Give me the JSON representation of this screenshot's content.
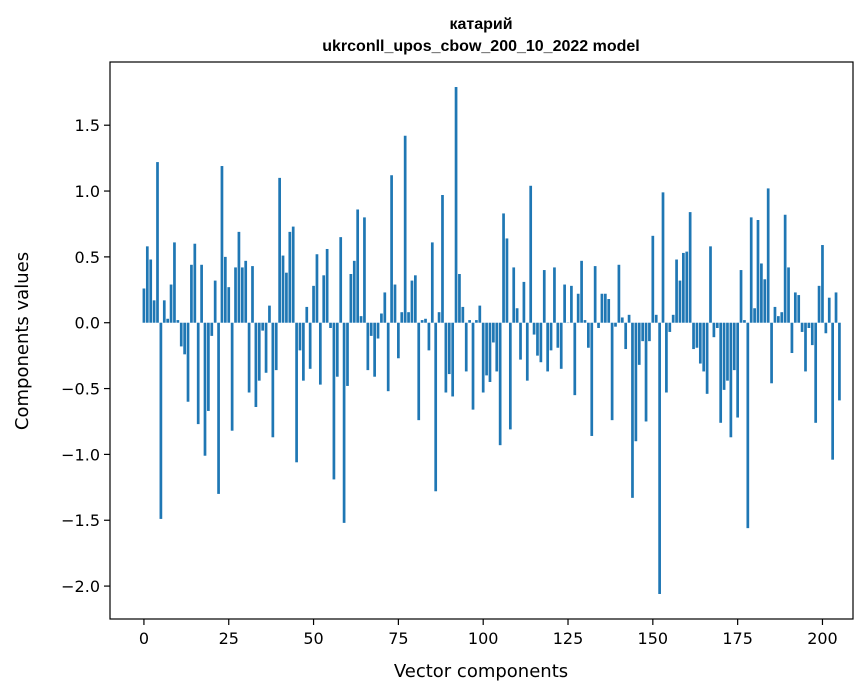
{
  "chart_data": {
    "type": "bar",
    "title": "катарий",
    "subtitle": "ukrconll_upos_cbow_200_10_2022 model",
    "xlabel": "Vector components",
    "ylabel": "Components values",
    "xlim": [
      -10,
      209
    ],
    "ylim": [
      -2.25,
      1.98
    ],
    "xticks": [
      0,
      25,
      50,
      75,
      100,
      125,
      150,
      175,
      200
    ],
    "yticks": [
      -2.0,
      -1.5,
      -1.0,
      -0.5,
      0.0,
      0.5,
      1.0,
      1.5
    ],
    "ytick_labels": [
      "−2.0",
      "−1.5",
      "−1.0",
      "−0.5",
      "0.0",
      "0.5",
      "1.0",
      "1.5"
    ],
    "bar_color": "#1f77b4",
    "grid": false,
    "values": [
      0.26,
      0.58,
      0.48,
      0.17,
      1.22,
      -1.49,
      0.17,
      0.03,
      0.29,
      0.61,
      0.02,
      -0.18,
      -0.24,
      -0.6,
      0.44,
      0.6,
      -0.77,
      0.44,
      -1.01,
      -0.67,
      -0.1,
      0.32,
      -1.3,
      1.19,
      0.5,
      0.27,
      -0.82,
      0.42,
      0.69,
      0.42,
      0.47,
      -0.53,
      0.43,
      -0.64,
      -0.44,
      -0.06,
      -0.38,
      0.13,
      -0.87,
      -0.36,
      1.1,
      0.51,
      0.38,
      0.69,
      0.73,
      -1.06,
      -0.21,
      -0.44,
      0.12,
      -0.35,
      0.28,
      0.52,
      -0.47,
      0.36,
      0.56,
      -0.04,
      -1.19,
      -0.41,
      0.65,
      -1.52,
      -0.48,
      0.37,
      0.47,
      0.86,
      0.05,
      0.8,
      -0.36,
      -0.1,
      -0.41,
      -0.12,
      0.07,
      0.23,
      -0.52,
      1.12,
      0.29,
      -0.27,
      0.08,
      1.42,
      0.08,
      0.32,
      0.36,
      -0.74,
      0.02,
      0.03,
      -0.21,
      0.61,
      -1.28,
      0.08,
      0.97,
      -0.53,
      -0.39,
      -0.56,
      1.79,
      0.37,
      0.12,
      -0.37,
      0.02,
      -0.66,
      0.02,
      0.13,
      -0.53,
      -0.4,
      -0.45,
      -0.15,
      -0.37,
      -0.93,
      0.83,
      0.64,
      -0.81,
      0.42,
      0.11,
      -0.28,
      0.31,
      -0.44,
      1.04,
      -0.09,
      -0.25,
      -0.3,
      0.4,
      -0.37,
      -0.21,
      0.42,
      -0.19,
      -0.35,
      0.29,
      0.0,
      0.28,
      -0.55,
      0.22,
      0.47,
      0.02,
      -0.19,
      -0.86,
      0.43,
      -0.04,
      0.22,
      0.22,
      0.18,
      -0.74,
      -0.03,
      0.44,
      0.04,
      -0.2,
      0.06,
      -1.33,
      -0.9,
      -0.32,
      -0.14,
      -0.75,
      -0.14,
      0.66,
      0.06,
      -2.06,
      0.99,
      -0.53,
      -0.07,
      0.06,
      0.48,
      0.32,
      0.53,
      0.54,
      0.84,
      -0.2,
      -0.19,
      -0.31,
      -0.37,
      -0.54,
      0.58,
      -0.11,
      -0.04,
      -0.76,
      -0.51,
      -0.44,
      -0.87,
      -0.36,
      -0.72,
      0.4,
      0.02,
      -1.56,
      0.8,
      0.11,
      0.78,
      0.45,
      0.33,
      1.02,
      -0.46,
      0.12,
      0.05,
      0.08,
      0.82,
      0.42,
      -0.23,
      0.23,
      0.21,
      -0.07,
      -0.37,
      -0.04,
      -0.17,
      -0.76,
      0.28,
      0.59,
      -0.08,
      0.19,
      -1.04,
      0.23,
      -0.59
    ]
  }
}
